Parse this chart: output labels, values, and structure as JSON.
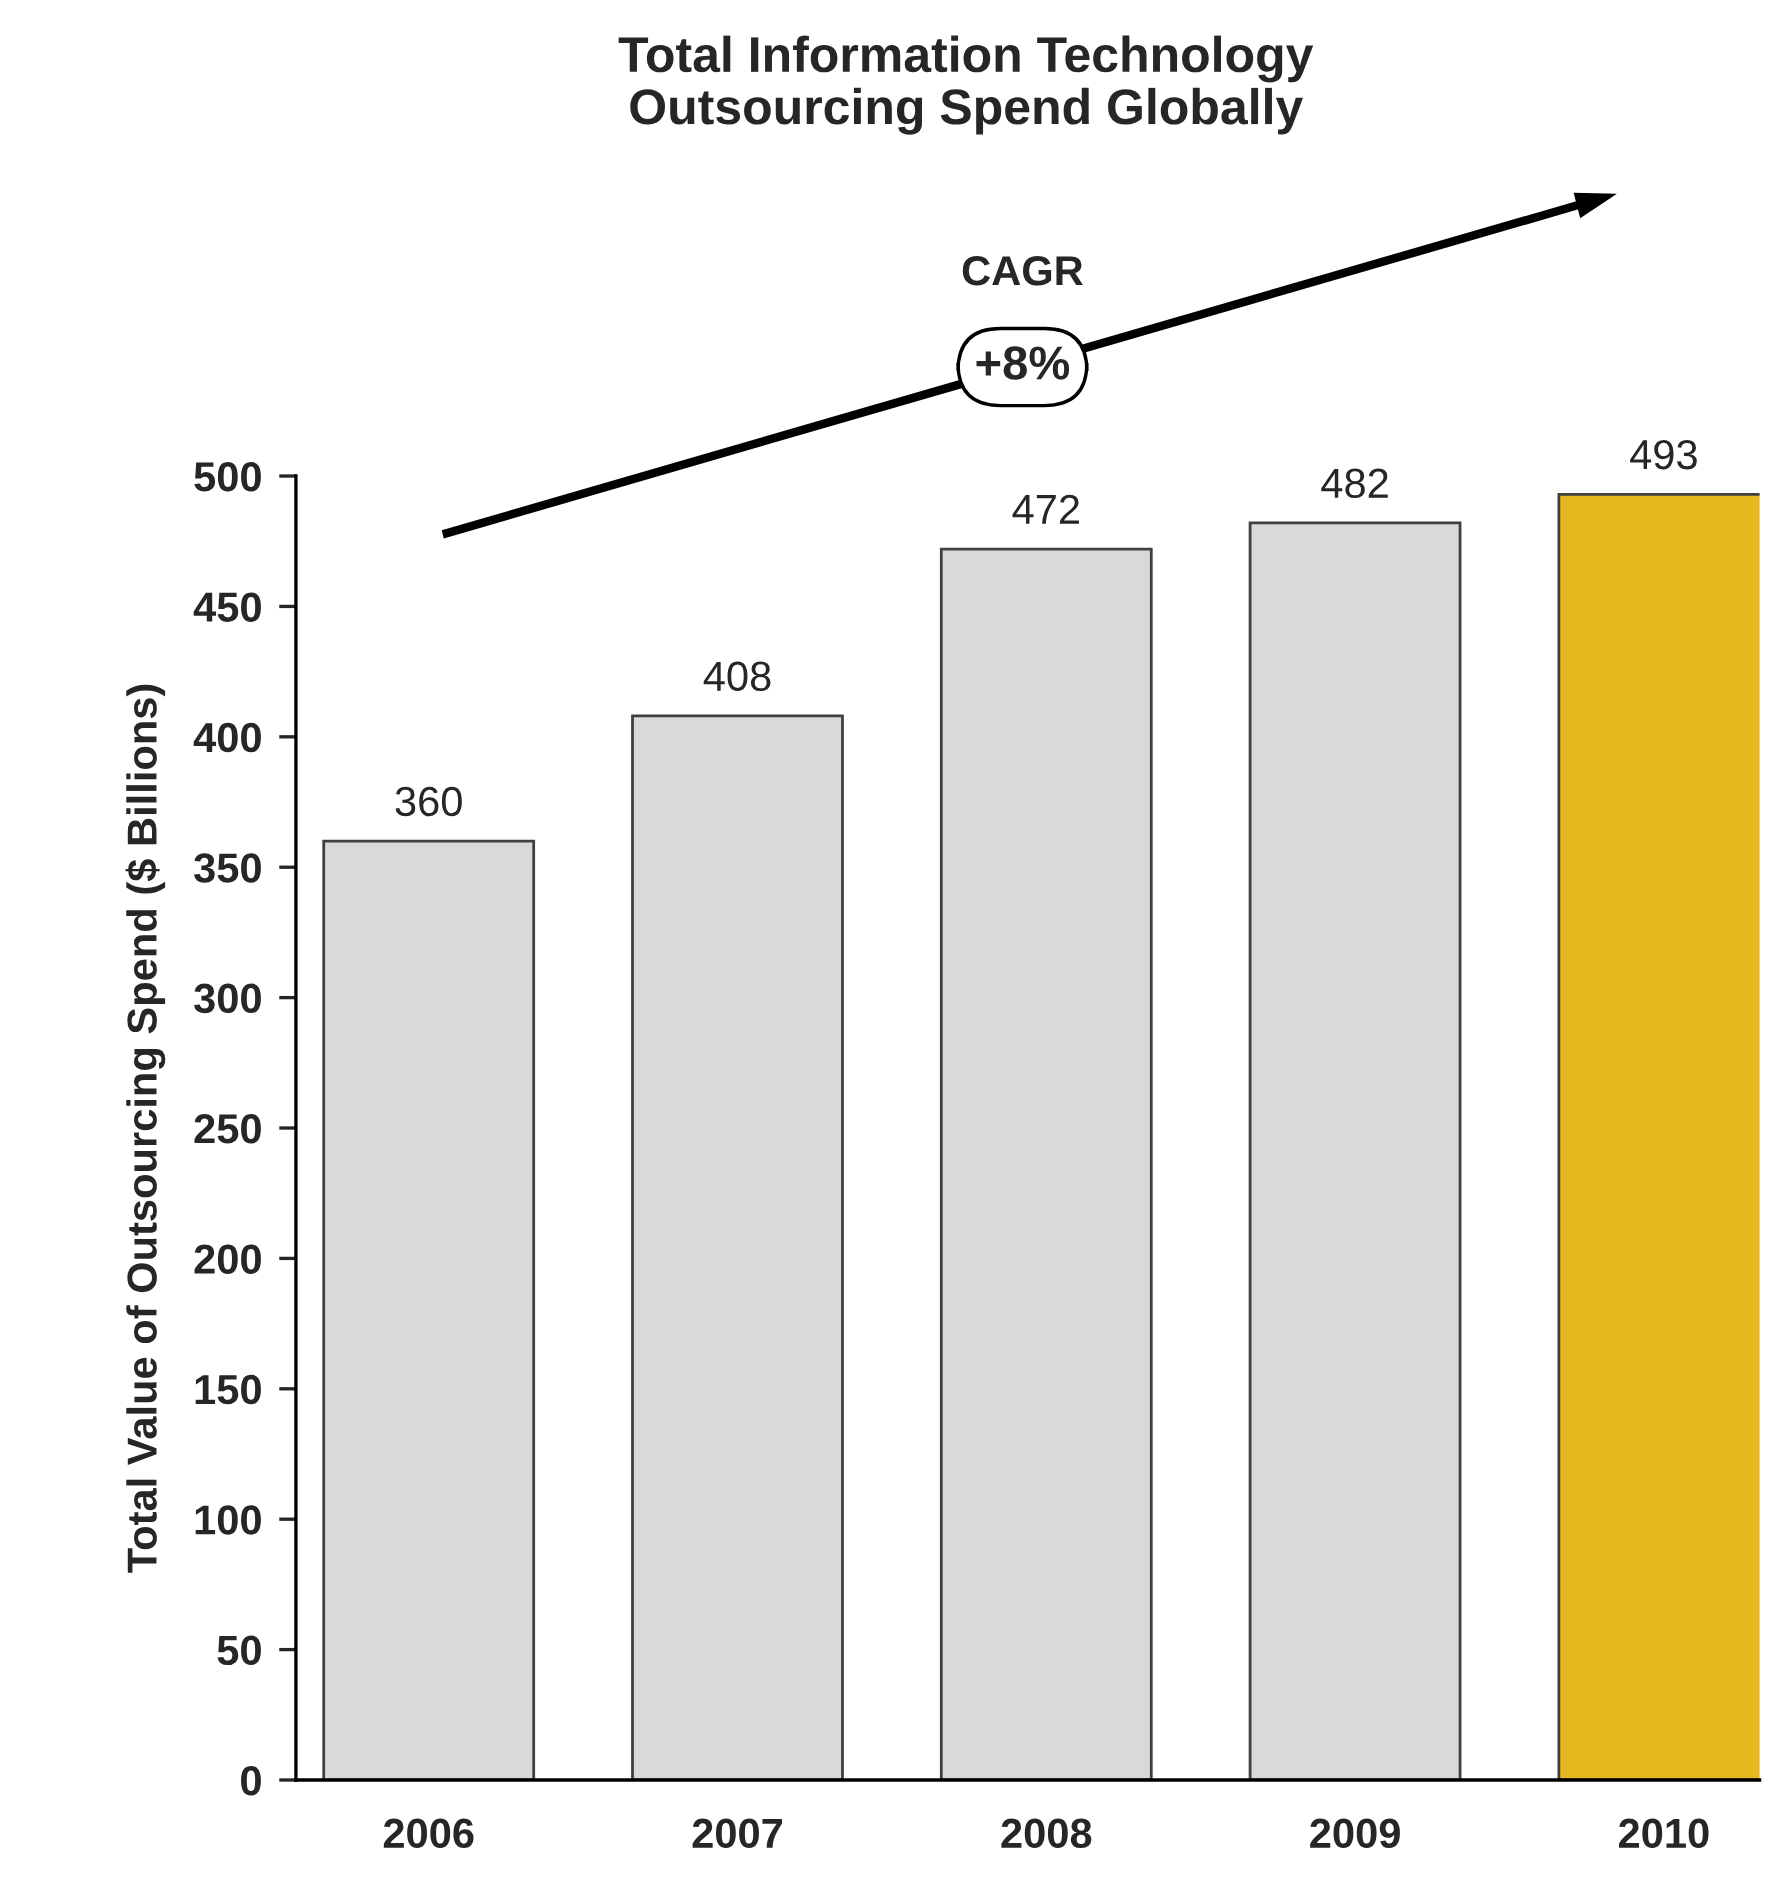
{
  "chart_data": {
    "type": "bar",
    "title": "Total Information Technology\nOutsourcing Spend Globally",
    "ylabel": "Total Value of Outsourcing Spend ($ Billions)",
    "categories": [
      "2006",
      "2007",
      "2008",
      "2009",
      "2010"
    ],
    "values": [
      360,
      408,
      472,
      482,
      493
    ],
    "colors": [
      "#d9d9d9",
      "#d9d9d9",
      "#d9d9d9",
      "#d9d9d9",
      "#e6b820"
    ],
    "ylim": [
      0,
      500
    ],
    "yticks": [
      0,
      50,
      100,
      150,
      200,
      250,
      300,
      350,
      400,
      450,
      500
    ],
    "data_labels": true,
    "grid": false,
    "legend": false,
    "annotations": [
      "CAGR",
      "+8%"
    ]
  }
}
